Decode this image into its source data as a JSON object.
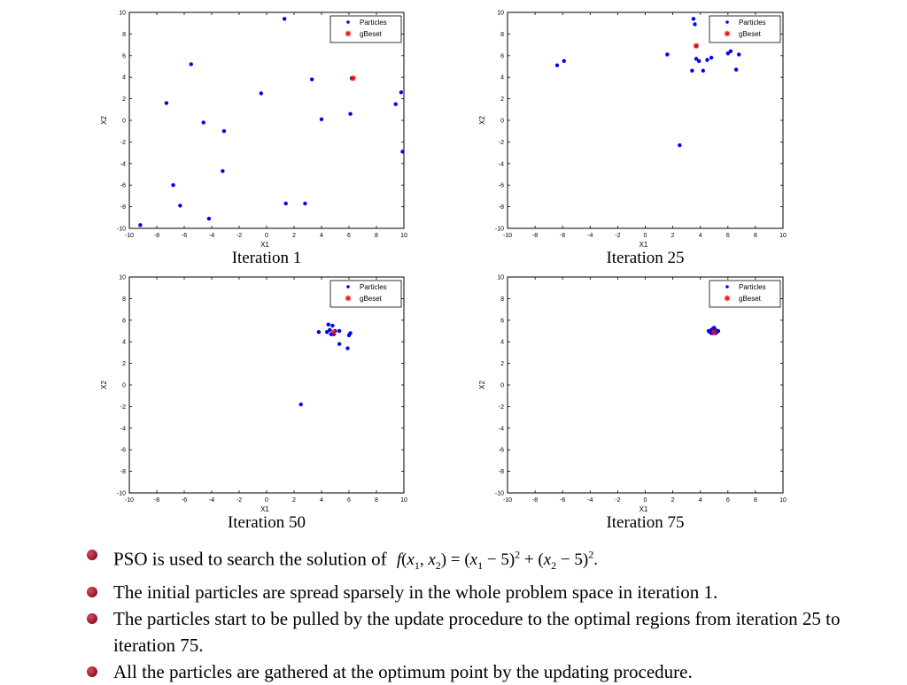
{
  "colors": {
    "particles": "#0000ee",
    "gbest": "#ee1111",
    "bullet": "#a01a2e"
  },
  "chart_data": [
    {
      "type": "scatter",
      "title": "Iteration 1",
      "xlabel": "X1",
      "ylabel": "X2",
      "xlim": [
        -10,
        10
      ],
      "ylim": [
        -10,
        10
      ],
      "xticks": [
        -10,
        -8,
        -6,
        -4,
        -2,
        0,
        2,
        4,
        6,
        8,
        10
      ],
      "yticks": [
        -10,
        -8,
        -6,
        -4,
        -2,
        0,
        2,
        4,
        6,
        8,
        10
      ],
      "grid": false,
      "legend_position": "top-right",
      "series": [
        {
          "name": "Particles",
          "marker": "dot",
          "color": "#0000ee",
          "points": [
            [
              1.3,
              9.4
            ],
            [
              -5.5,
              5.2
            ],
            [
              -7.3,
              1.6
            ],
            [
              -0.4,
              2.5
            ],
            [
              3.3,
              3.8
            ],
            [
              6.2,
              3.9
            ],
            [
              9.8,
              2.6
            ],
            [
              9.4,
              1.5
            ],
            [
              -4.6,
              -0.2
            ],
            [
              -3.1,
              -1.0
            ],
            [
              4.0,
              0.1
            ],
            [
              6.1,
              0.6
            ],
            [
              9.9,
              -2.9
            ],
            [
              -3.2,
              -4.7
            ],
            [
              -6.8,
              -6.0
            ],
            [
              -6.3,
              -7.9
            ],
            [
              1.4,
              -7.7
            ],
            [
              2.8,
              -7.7
            ],
            [
              -4.2,
              -9.1
            ],
            [
              -9.2,
              -9.7
            ]
          ]
        },
        {
          "name": "gBeset",
          "marker": "star",
          "color": "#ee1111",
          "points": [
            [
              6.3,
              3.9
            ]
          ]
        }
      ]
    },
    {
      "type": "scatter",
      "title": "Iteration 25",
      "xlabel": "X1",
      "ylabel": "X2",
      "xlim": [
        -10,
        10
      ],
      "ylim": [
        -10,
        10
      ],
      "xticks": [
        -10,
        -8,
        -6,
        -4,
        -2,
        0,
        2,
        4,
        6,
        8,
        10
      ],
      "yticks": [
        -10,
        -8,
        -6,
        -4,
        -2,
        0,
        2,
        4,
        6,
        8,
        10
      ],
      "grid": false,
      "legend_position": "top-right",
      "series": [
        {
          "name": "Particles",
          "marker": "dot",
          "color": "#0000ee",
          "points": [
            [
              3.5,
              9.4
            ],
            [
              3.6,
              8.9
            ],
            [
              3.7,
              6.9
            ],
            [
              1.6,
              6.1
            ],
            [
              3.7,
              5.7
            ],
            [
              3.9,
              5.5
            ],
            [
              3.4,
              4.6
            ],
            [
              4.2,
              4.6
            ],
            [
              4.5,
              5.6
            ],
            [
              4.8,
              5.8
            ],
            [
              6.0,
              6.2
            ],
            [
              6.2,
              6.4
            ],
            [
              6.8,
              6.1
            ],
            [
              6.6,
              4.7
            ],
            [
              -6.4,
              5.1
            ],
            [
              -5.9,
              5.5
            ],
            [
              2.5,
              -2.3
            ]
          ]
        },
        {
          "name": "gBeset",
          "marker": "star",
          "color": "#ee1111",
          "points": [
            [
              3.7,
              6.9
            ]
          ]
        }
      ]
    },
    {
      "type": "scatter",
      "title": "Iteration 50",
      "xlabel": "X1",
      "ylabel": "X2",
      "xlim": [
        -10,
        10
      ],
      "ylim": [
        -10,
        10
      ],
      "xticks": [
        -10,
        -8,
        -6,
        -4,
        -2,
        0,
        2,
        4,
        6,
        8,
        10
      ],
      "yticks": [
        -10,
        -8,
        -6,
        -4,
        -2,
        0,
        2,
        4,
        6,
        8,
        10
      ],
      "grid": false,
      "legend_position": "top-right",
      "series": [
        {
          "name": "Particles",
          "marker": "dot",
          "color": "#0000ee",
          "points": [
            [
              4.5,
              5.6
            ],
            [
              4.8,
              5.5
            ],
            [
              4.6,
              5.1
            ],
            [
              4.4,
              4.9
            ],
            [
              5.0,
              5.0
            ],
            [
              4.9,
              4.7
            ],
            [
              5.3,
              5.0
            ],
            [
              3.8,
              4.9
            ],
            [
              4.7,
              4.7
            ],
            [
              5.3,
              3.8
            ],
            [
              5.9,
              3.4
            ],
            [
              6.0,
              4.6
            ],
            [
              6.1,
              4.8
            ],
            [
              2.5,
              -1.8
            ]
          ]
        },
        {
          "name": "gBeset",
          "marker": "star",
          "color": "#ee1111",
          "points": [
            [
              4.9,
              4.9
            ]
          ]
        }
      ]
    },
    {
      "type": "scatter",
      "title": "Iteration 75",
      "xlabel": "X1",
      "ylabel": "X2",
      "xlim": [
        -10,
        10
      ],
      "ylim": [
        -10,
        10
      ],
      "xticks": [
        -10,
        -8,
        -6,
        -4,
        -2,
        0,
        2,
        4,
        6,
        8,
        10
      ],
      "yticks": [
        -10,
        -8,
        -6,
        -4,
        -2,
        0,
        2,
        4,
        6,
        8,
        10
      ],
      "grid": false,
      "legend_position": "top-right",
      "series": [
        {
          "name": "Particles",
          "marker": "dot",
          "color": "#0000ee",
          "points": [
            [
              4.8,
              5.1
            ],
            [
              4.9,
              5.2
            ],
            [
              5.0,
              5.0
            ],
            [
              5.1,
              5.1
            ],
            [
              4.7,
              4.9
            ],
            [
              5.2,
              4.9
            ],
            [
              4.9,
              4.8
            ],
            [
              5.0,
              5.3
            ],
            [
              5.1,
              4.8
            ],
            [
              4.6,
              5.0
            ],
            [
              5.3,
              5.0
            ],
            [
              4.8,
              4.8
            ]
          ]
        },
        {
          "name": "gBeset",
          "marker": "star",
          "color": "#ee1111",
          "points": [
            [
              5.0,
              4.9
            ]
          ]
        }
      ]
    }
  ],
  "bullets": [
    "PSO is used to search the solution of",
    "The initial particles are spread sparsely in the whole problem space in iteration 1.",
    "The particles start to be pulled by the update procedure to the optimal regions from iteration 25 to iteration 75.",
    "All the particles are gathered at the optimum point by the updating procedure."
  ],
  "formula": {
    "lhs_f": "f",
    "lhs_args": "(x",
    "sub1": "1",
    "comma": ", x",
    "sub2": "2",
    "eq": ") = (x",
    "sub3": "1",
    "mid1": " − 5)",
    "sup1": "2",
    "plus": " + (x",
    "sub4": "2",
    "mid2": " − 5)",
    "sup2": "2",
    "end": "."
  }
}
